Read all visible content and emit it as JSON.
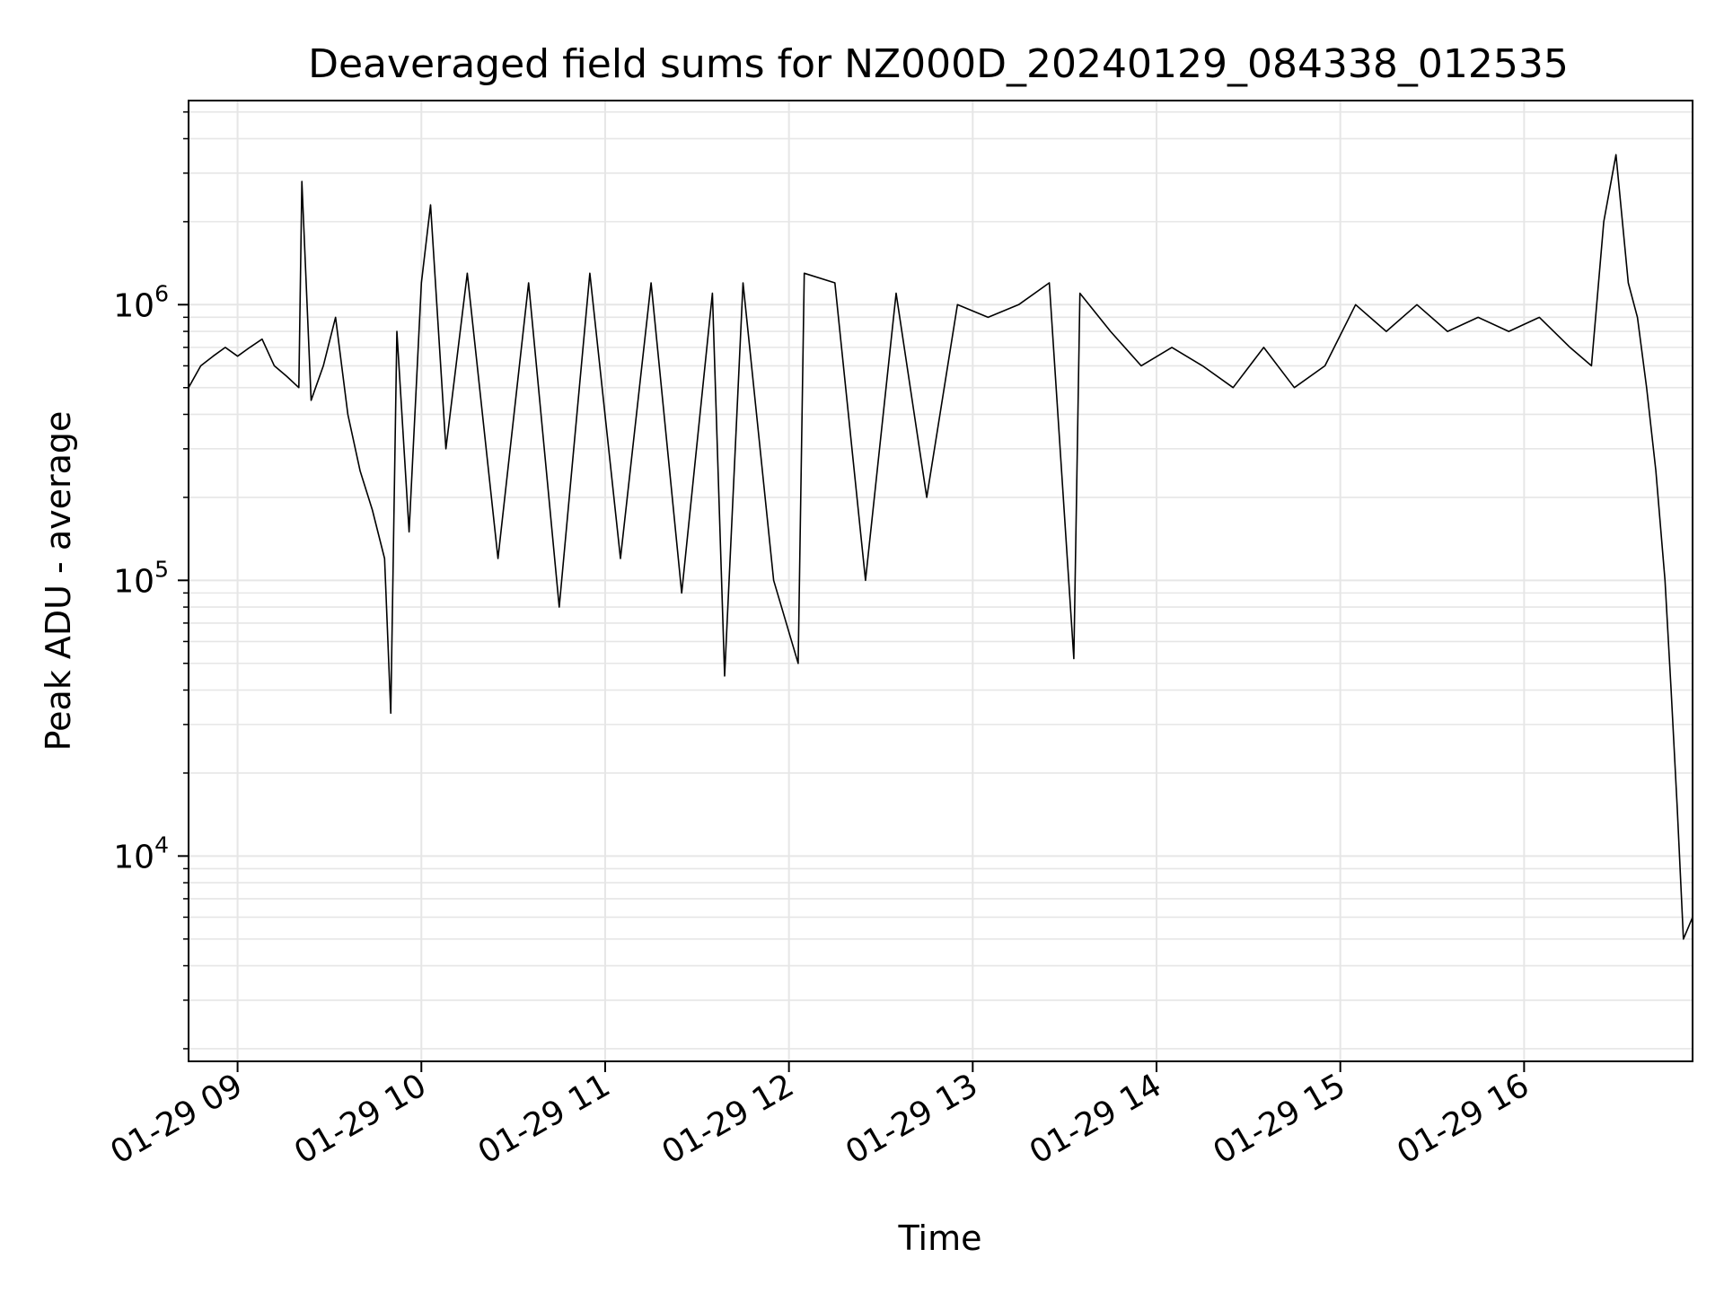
{
  "chart_data": {
    "type": "line",
    "title": "Deaveraged field sums for NZ000D_20240129_084338_012535",
    "xlabel": "Time",
    "ylabel": "Peak ADU - average",
    "yscale": "log",
    "grid": true,
    "legend": "none",
    "line_color": "#000000",
    "grid_color": "#e6e6e6",
    "xlim": [
      "2024-01-29 08:44",
      "2024-01-29 16:55"
    ],
    "ylim": [
      1800,
      5500000
    ],
    "x_ticks": [
      "2024-01-29 09:00",
      "2024-01-29 10:00",
      "2024-01-29 11:00",
      "2024-01-29 12:00",
      "2024-01-29 13:00",
      "2024-01-29 14:00",
      "2024-01-29 15:00",
      "2024-01-29 16:00"
    ],
    "x_tick_labels": [
      "01-29 09",
      "01-29 10",
      "01-29 11",
      "01-29 12",
      "01-29 13",
      "01-29 14",
      "01-29 15",
      "01-29 16"
    ],
    "y_ticks": [
      10000,
      100000,
      1000000
    ],
    "y_tick_labels": [
      {
        "base": "10",
        "exp": "4"
      },
      {
        "base": "10",
        "exp": "5"
      },
      {
        "base": "10",
        "exp": "6"
      }
    ],
    "series": [
      {
        "x": [
          "2024-01-29 08:44",
          "2024-01-29 08:48",
          "2024-01-29 08:52",
          "2024-01-29 08:56",
          "2024-01-29 09:00",
          "2024-01-29 09:04",
          "2024-01-29 09:08",
          "2024-01-29 09:12",
          "2024-01-29 09:16",
          "2024-01-29 09:20",
          "2024-01-29 09:21",
          "2024-01-29 09:24",
          "2024-01-29 09:28",
          "2024-01-29 09:32",
          "2024-01-29 09:36",
          "2024-01-29 09:40",
          "2024-01-29 09:44",
          "2024-01-29 09:48",
          "2024-01-29 09:50",
          "2024-01-29 09:52",
          "2024-01-29 09:56",
          "2024-01-29 10:00",
          "2024-01-29 10:03",
          "2024-01-29 10:08",
          "2024-01-29 10:15",
          "2024-01-29 10:25",
          "2024-01-29 10:35",
          "2024-01-29 10:45",
          "2024-01-29 10:55",
          "2024-01-29 11:05",
          "2024-01-29 11:15",
          "2024-01-29 11:25",
          "2024-01-29 11:35",
          "2024-01-29 11:39",
          "2024-01-29 11:45",
          "2024-01-29 11:55",
          "2024-01-29 12:03",
          "2024-01-29 12:05",
          "2024-01-29 12:15",
          "2024-01-29 12:25",
          "2024-01-29 12:35",
          "2024-01-29 12:45",
          "2024-01-29 12:55",
          "2024-01-29 13:05",
          "2024-01-29 13:15",
          "2024-01-29 13:25",
          "2024-01-29 13:33",
          "2024-01-29 13:35",
          "2024-01-29 13:45",
          "2024-01-29 13:55",
          "2024-01-29 14:05",
          "2024-01-29 14:15",
          "2024-01-29 14:25",
          "2024-01-29 14:35",
          "2024-01-29 14:45",
          "2024-01-29 14:55",
          "2024-01-29 15:05",
          "2024-01-29 15:15",
          "2024-01-29 15:25",
          "2024-01-29 15:35",
          "2024-01-29 15:45",
          "2024-01-29 15:55",
          "2024-01-29 16:05",
          "2024-01-29 16:15",
          "2024-01-29 16:22",
          "2024-01-29 16:26",
          "2024-01-29 16:30",
          "2024-01-29 16:34",
          "2024-01-29 16:37",
          "2024-01-29 16:40",
          "2024-01-29 16:43",
          "2024-01-29 16:46",
          "2024-01-29 16:48",
          "2024-01-29 16:50",
          "2024-01-29 16:52",
          "2024-01-29 16:55"
        ],
        "values": [
          500000,
          600000,
          650000,
          700000,
          650000,
          700000,
          750000,
          600000,
          550000,
          500000,
          2800000,
          450000,
          600000,
          900000,
          400000,
          250000,
          180000,
          120000,
          33000,
          800000,
          150000,
          1200000,
          2300000,
          300000,
          1300000,
          120000,
          1200000,
          80000,
          1300000,
          120000,
          1200000,
          90000,
          1100000,
          45000,
          1200000,
          100000,
          50000,
          1300000,
          1200000,
          100000,
          1100000,
          200000,
          1000000,
          900000,
          1000000,
          1200000,
          52000,
          1100000,
          800000,
          600000,
          700000,
          600000,
          500000,
          700000,
          500000,
          600000,
          1000000,
          800000,
          1000000,
          800000,
          900000,
          800000,
          900000,
          700000,
          600000,
          2000000,
          3500000,
          1200000,
          900000,
          500000,
          250000,
          100000,
          40000,
          15000,
          5000,
          6000
        ]
      }
    ]
  }
}
